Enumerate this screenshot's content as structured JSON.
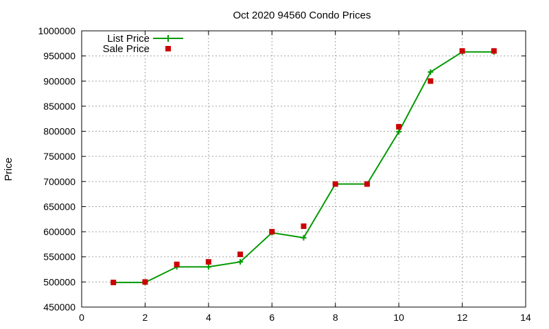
{
  "chart_data": {
    "type": "line",
    "title": "Oct 2020 94560 Condo Prices",
    "xlabel": "",
    "ylabel": "Price",
    "xlim": [
      0,
      14
    ],
    "ylim": [
      450000,
      1000000
    ],
    "x_ticks": [
      0,
      2,
      4,
      6,
      8,
      10,
      12,
      14
    ],
    "y_ticks": [
      450000,
      500000,
      550000,
      600000,
      650000,
      700000,
      750000,
      800000,
      850000,
      900000,
      950000,
      1000000
    ],
    "grid": true,
    "legend_position": "top-left",
    "series": [
      {
        "name": "List Price",
        "style": "line-with-plus-markers",
        "color": "#009900",
        "x": [
          1,
          2,
          3,
          4,
          5,
          6,
          7,
          8,
          9,
          10,
          11,
          12,
          13
        ],
        "y": [
          499000,
          499000,
          530000,
          530000,
          540000,
          598000,
          588000,
          695000,
          695000,
          799000,
          918000,
          958000,
          958000
        ]
      },
      {
        "name": "Sale Price",
        "style": "square-markers",
        "color": "#cc0000",
        "x": [
          1,
          2,
          3,
          4,
          5,
          6,
          7,
          8,
          9,
          10,
          11,
          12,
          13
        ],
        "y": [
          499000,
          500000,
          535000,
          540000,
          555000,
          600000,
          611000,
          695000,
          695000,
          809000,
          900000,
          960000,
          960000
        ]
      }
    ]
  }
}
